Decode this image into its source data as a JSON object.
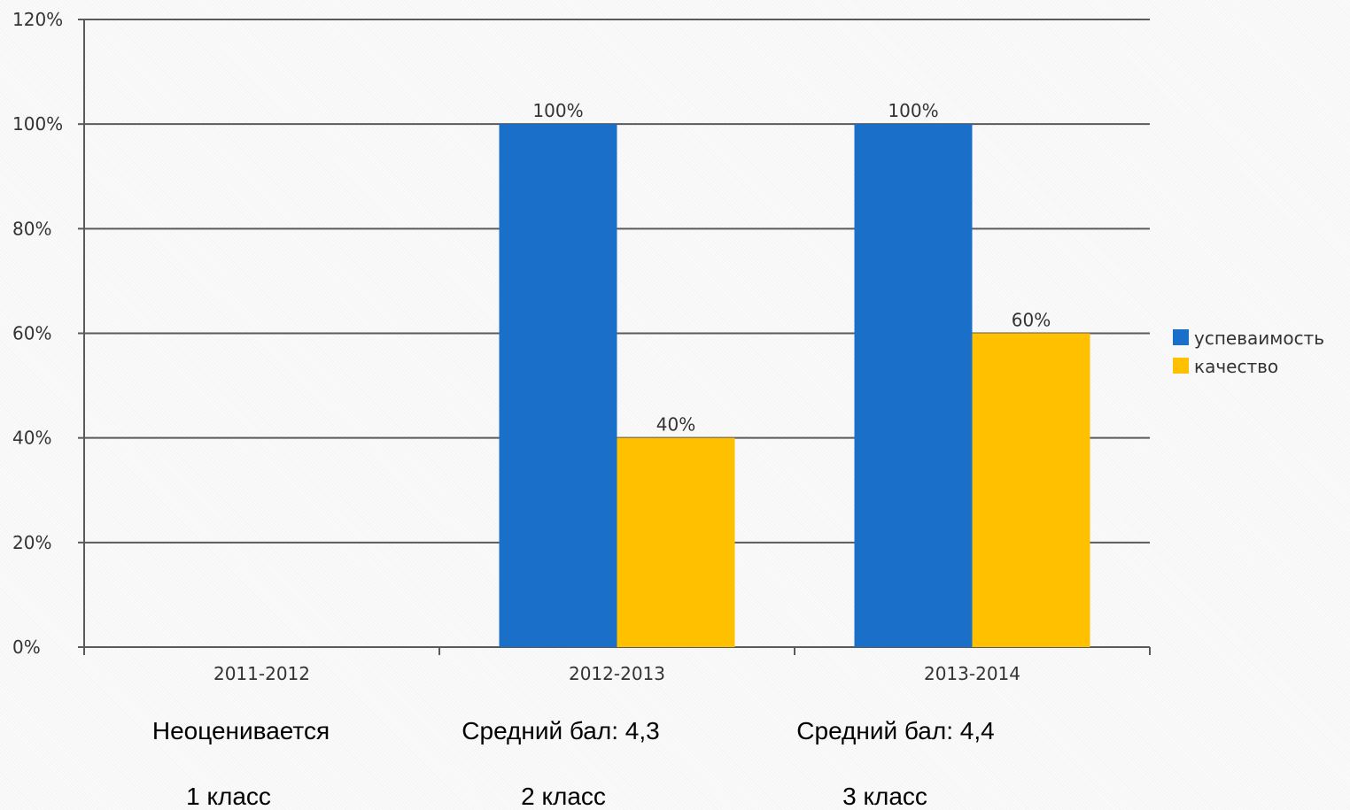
{
  "chart_data": {
    "type": "bar",
    "categories": [
      "2011-2012",
      "2012-2013",
      "2013-2014"
    ],
    "series": [
      {
        "name": "успеваимость",
        "values": [
          null,
          100,
          100
        ],
        "color": "#1a6fc9"
      },
      {
        "name": "качество",
        "values": [
          null,
          40,
          60
        ],
        "color": "#ffc000"
      }
    ],
    "data_labels": [
      [
        "",
        "100%",
        "100%"
      ],
      [
        "",
        "40%",
        "60%"
      ]
    ],
    "ylim": [
      0,
      120
    ],
    "yticks": [
      0,
      20,
      40,
      60,
      80,
      100,
      120
    ],
    "ytick_labels": [
      "0%",
      "20%",
      "40%",
      "60%",
      "80%",
      "100%",
      "120%"
    ],
    "grid": true,
    "legend_position": "right",
    "title": "",
    "xlabel": "",
    "ylabel": ""
  },
  "annotations": {
    "averages": [
      "Неоценивается",
      "Средний бал: 4,3",
      "Средний бал: 4,4"
    ],
    "classes": [
      "1 класс",
      "2 класс",
      "3 класс"
    ]
  }
}
